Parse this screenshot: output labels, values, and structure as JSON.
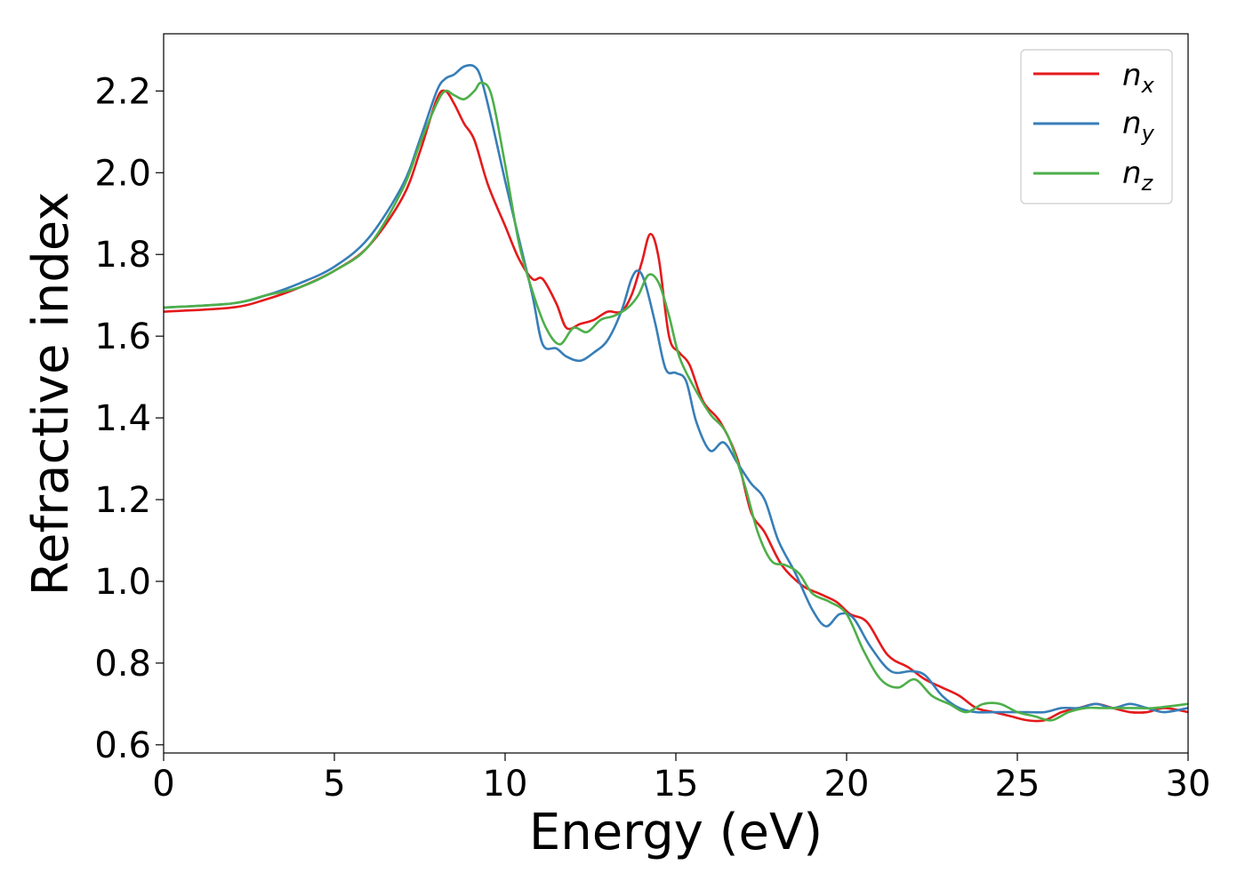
{
  "chart_data": {
    "type": "line",
    "xlabel": "Energy (eV)",
    "ylabel": "Refractive index",
    "xlim": [
      0,
      30
    ],
    "ylim": [
      0.58,
      2.34
    ],
    "xticks": [
      0,
      5,
      10,
      15,
      20,
      25,
      30
    ],
    "yticks": [
      0.6,
      0.8,
      1.0,
      1.2,
      1.4,
      1.6,
      1.8,
      2.0,
      2.2
    ],
    "grid": false,
    "legend_position": "top-right",
    "series": [
      {
        "name": "n",
        "subscript": "x",
        "color": "#e41a1c",
        "x": [
          0,
          2,
          3,
          4,
          5,
          6,
          7,
          7.5,
          8,
          8.25,
          8.5,
          8.8,
          9.1,
          9.5,
          10,
          10.4,
          10.8,
          11.1,
          11.5,
          11.8,
          12.2,
          12.6,
          13,
          13.4,
          13.7,
          14,
          14.25,
          14.5,
          14.8,
          15.1,
          15.4,
          15.8,
          16.3,
          16.8,
          17.2,
          17.6,
          18.1,
          18.7,
          19.2,
          19.7,
          20.1,
          20.6,
          21.2,
          21.8,
          22.3,
          22.8,
          23.3,
          23.8,
          24.3,
          24.8,
          25.3,
          25.8,
          26.3,
          26.8,
          27.3,
          27.8,
          28.3,
          28.8,
          29.3,
          30
        ],
        "y": [
          1.66,
          1.67,
          1.69,
          1.72,
          1.76,
          1.82,
          1.94,
          2.05,
          2.18,
          2.2,
          2.17,
          2.12,
          2.08,
          1.97,
          1.87,
          1.79,
          1.74,
          1.74,
          1.68,
          1.62,
          1.63,
          1.64,
          1.66,
          1.66,
          1.7,
          1.78,
          1.85,
          1.79,
          1.6,
          1.56,
          1.53,
          1.44,
          1.39,
          1.3,
          1.17,
          1.12,
          1.04,
          0.99,
          0.97,
          0.95,
          0.92,
          0.9,
          0.82,
          0.79,
          0.76,
          0.74,
          0.72,
          0.69,
          0.68,
          0.67,
          0.66,
          0.66,
          0.68,
          0.69,
          0.7,
          0.69,
          0.68,
          0.68,
          0.69,
          0.68
        ]
      },
      {
        "name": "n",
        "subscript": "y",
        "color": "#377eb8",
        "x": [
          0,
          2,
          3,
          4,
          5,
          6,
          7,
          7.5,
          8,
          8.25,
          8.5,
          8.8,
          9.1,
          9.3,
          9.6,
          10,
          10.4,
          10.8,
          11.1,
          11.5,
          11.8,
          12.2,
          12.6,
          13,
          13.4,
          13.7,
          13.9,
          14.1,
          14.4,
          14.7,
          15,
          15.3,
          15.6,
          16,
          16.4,
          16.8,
          17.2,
          17.6,
          18,
          18.5,
          19,
          19.4,
          19.8,
          20.2,
          20.7,
          21.3,
          21.9,
          22.3,
          22.8,
          23.3,
          23.8,
          24.3,
          24.8,
          25.3,
          25.8,
          26.3,
          26.8,
          27.3,
          27.8,
          28.3,
          28.8,
          29.3,
          30
        ],
        "y": [
          1.67,
          1.68,
          1.7,
          1.73,
          1.77,
          1.84,
          1.97,
          2.08,
          2.2,
          2.23,
          2.24,
          2.26,
          2.26,
          2.23,
          2.13,
          1.98,
          1.84,
          1.7,
          1.58,
          1.57,
          1.55,
          1.54,
          1.56,
          1.59,
          1.66,
          1.74,
          1.76,
          1.73,
          1.63,
          1.52,
          1.51,
          1.49,
          1.39,
          1.32,
          1.34,
          1.29,
          1.24,
          1.2,
          1.1,
          1.02,
          0.93,
          0.89,
          0.92,
          0.91,
          0.84,
          0.78,
          0.78,
          0.77,
          0.72,
          0.69,
          0.68,
          0.68,
          0.68,
          0.68,
          0.68,
          0.69,
          0.69,
          0.7,
          0.69,
          0.7,
          0.69,
          0.68,
          0.69
        ]
      },
      {
        "name": "n",
        "subscript": "z",
        "color": "#4daf4a",
        "x": [
          0,
          2,
          3,
          4,
          5,
          6,
          7,
          7.5,
          8,
          8.25,
          8.5,
          8.8,
          9.1,
          9.3,
          9.6,
          10,
          10.4,
          10.8,
          11.2,
          11.6,
          12,
          12.4,
          12.8,
          13.2,
          13.6,
          13.9,
          14.2,
          14.5,
          14.8,
          15.1,
          15.5,
          16,
          16.5,
          17,
          17.4,
          17.8,
          18.2,
          18.6,
          19,
          19.5,
          20,
          20.5,
          21,
          21.5,
          22,
          22.5,
          23,
          23.5,
          24,
          24.5,
          25,
          25.5,
          26,
          26.5,
          27,
          27.5,
          28,
          28.5,
          29,
          30
        ],
        "y": [
          1.67,
          1.68,
          1.7,
          1.72,
          1.76,
          1.82,
          1.96,
          2.07,
          2.17,
          2.2,
          2.19,
          2.18,
          2.2,
          2.22,
          2.19,
          2.02,
          1.83,
          1.71,
          1.62,
          1.58,
          1.62,
          1.61,
          1.64,
          1.65,
          1.67,
          1.7,
          1.75,
          1.73,
          1.65,
          1.55,
          1.48,
          1.41,
          1.36,
          1.24,
          1.12,
          1.05,
          1.04,
          1.02,
          0.97,
          0.95,
          0.92,
          0.83,
          0.76,
          0.74,
          0.76,
          0.72,
          0.7,
          0.68,
          0.7,
          0.7,
          0.68,
          0.67,
          0.66,
          0.68,
          0.69,
          0.69,
          0.69,
          0.69,
          0.69,
          0.7
        ]
      }
    ]
  }
}
